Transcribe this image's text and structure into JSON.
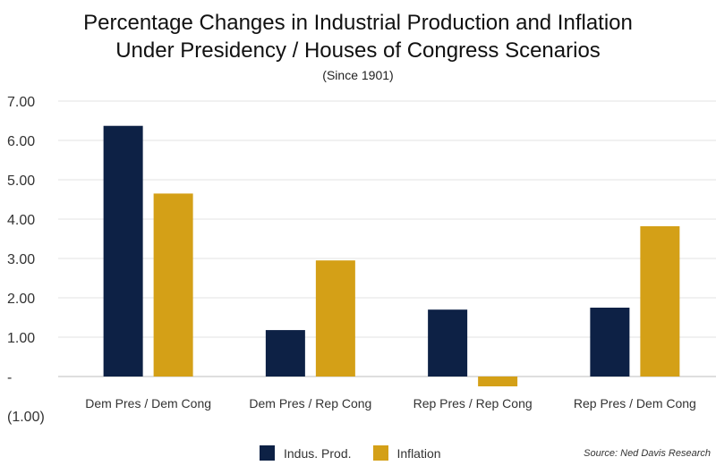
{
  "chart_data": {
    "type": "bar",
    "title_line1": "Percentage Changes in Industrial Production and Inflation",
    "title_line2": "Under Presidency / Houses of Congress Scenarios",
    "subtitle": "(Since 1901)",
    "categories": [
      "Dem Pres / Dem Cong",
      "Dem Pres / Rep Cong",
      "Rep Pres / Rep Cong",
      "Rep Pres / Dem Cong"
    ],
    "series": [
      {
        "name": "Indus. Prod.",
        "color": "#0d2145",
        "values": [
          6.37,
          1.18,
          1.7,
          1.75
        ]
      },
      {
        "name": "Inflation",
        "color": "#d4a017",
        "values": [
          4.65,
          2.95,
          -0.25,
          3.82
        ]
      }
    ],
    "ylim": [
      -1,
      7
    ],
    "yticks": [
      7,
      6,
      5,
      4,
      3,
      2,
      1,
      0,
      -1
    ],
    "ytick_labels": [
      "7.00",
      "6.00",
      "5.00",
      "4.00",
      "3.00",
      "2.00",
      "1.00",
      "-",
      "(1.00)"
    ],
    "grid": true,
    "legend_position": "bottom",
    "source": "Source: Ned Davis Research"
  }
}
